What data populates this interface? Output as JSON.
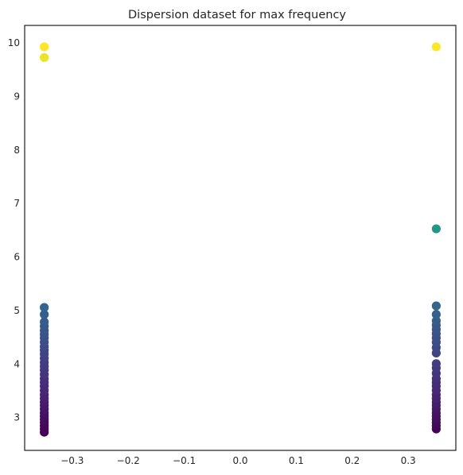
{
  "chart_data": {
    "type": "scatter",
    "title": "Dispersion dataset for max frequency",
    "xlabel": "",
    "ylabel": "",
    "xlim": [
      -0.385,
      0.385
    ],
    "ylim": [
      2.38,
      10.32
    ],
    "xticks": [
      -0.3,
      -0.2,
      -0.1,
      0.0,
      0.1,
      0.2,
      0.3
    ],
    "xtick_labels": [
      "−0.3",
      "−0.2",
      "−0.1",
      "0.0",
      "0.1",
      "0.2",
      "0.3"
    ],
    "yticks": [
      3,
      4,
      5,
      6,
      7,
      8,
      9,
      10
    ],
    "ytick_labels": [
      "3",
      "4",
      "5",
      "6",
      "7",
      "8",
      "9",
      "10"
    ],
    "grid": false,
    "colormap": "viridis",
    "color_range": [
      2.72,
      9.92
    ],
    "points": [
      {
        "x": -0.35,
        "y": 2.72
      },
      {
        "x": -0.35,
        "y": 2.78
      },
      {
        "x": -0.35,
        "y": 2.84
      },
      {
        "x": -0.35,
        "y": 2.9
      },
      {
        "x": -0.35,
        "y": 2.96
      },
      {
        "x": -0.35,
        "y": 3.02
      },
      {
        "x": -0.35,
        "y": 3.08
      },
      {
        "x": -0.35,
        "y": 3.15
      },
      {
        "x": -0.35,
        "y": 3.22
      },
      {
        "x": -0.35,
        "y": 3.28
      },
      {
        "x": -0.35,
        "y": 3.35
      },
      {
        "x": -0.35,
        "y": 3.42
      },
      {
        "x": -0.35,
        "y": 3.5
      },
      {
        "x": -0.35,
        "y": 3.58
      },
      {
        "x": -0.35,
        "y": 3.65
      },
      {
        "x": -0.35,
        "y": 3.72
      },
      {
        "x": -0.35,
        "y": 3.8
      },
      {
        "x": -0.35,
        "y": 3.88
      },
      {
        "x": -0.35,
        "y": 3.95
      },
      {
        "x": -0.35,
        "y": 4.02
      },
      {
        "x": -0.35,
        "y": 4.1
      },
      {
        "x": -0.35,
        "y": 4.18
      },
      {
        "x": -0.35,
        "y": 4.25
      },
      {
        "x": -0.35,
        "y": 4.32
      },
      {
        "x": -0.35,
        "y": 4.4
      },
      {
        "x": -0.35,
        "y": 4.48
      },
      {
        "x": -0.35,
        "y": 4.55
      },
      {
        "x": -0.35,
        "y": 4.62
      },
      {
        "x": -0.35,
        "y": 4.7
      },
      {
        "x": -0.35,
        "y": 4.78
      },
      {
        "x": -0.35,
        "y": 4.92
      },
      {
        "x": -0.35,
        "y": 5.05
      },
      {
        "x": -0.35,
        "y": 9.72
      },
      {
        "x": -0.35,
        "y": 9.92
      },
      {
        "x": 0.35,
        "y": 2.78
      },
      {
        "x": 0.35,
        "y": 2.84
      },
      {
        "x": 0.35,
        "y": 2.9
      },
      {
        "x": 0.35,
        "y": 2.96
      },
      {
        "x": 0.35,
        "y": 3.02
      },
      {
        "x": 0.35,
        "y": 3.08
      },
      {
        "x": 0.35,
        "y": 3.15
      },
      {
        "x": 0.35,
        "y": 3.22
      },
      {
        "x": 0.35,
        "y": 3.28
      },
      {
        "x": 0.35,
        "y": 3.35
      },
      {
        "x": 0.35,
        "y": 3.42
      },
      {
        "x": 0.35,
        "y": 3.5
      },
      {
        "x": 0.35,
        "y": 3.58
      },
      {
        "x": 0.35,
        "y": 3.65
      },
      {
        "x": 0.35,
        "y": 3.72
      },
      {
        "x": 0.35,
        "y": 3.82
      },
      {
        "x": 0.35,
        "y": 3.92
      },
      {
        "x": 0.35,
        "y": 4.0
      },
      {
        "x": 0.35,
        "y": 4.2
      },
      {
        "x": 0.35,
        "y": 4.3
      },
      {
        "x": 0.35,
        "y": 4.4
      },
      {
        "x": 0.35,
        "y": 4.48
      },
      {
        "x": 0.35,
        "y": 4.56
      },
      {
        "x": 0.35,
        "y": 4.64
      },
      {
        "x": 0.35,
        "y": 4.72
      },
      {
        "x": 0.35,
        "y": 4.8
      },
      {
        "x": 0.35,
        "y": 4.92
      },
      {
        "x": 0.35,
        "y": 5.08
      },
      {
        "x": 0.35,
        "y": 6.52
      },
      {
        "x": 0.35,
        "y": 9.92
      }
    ]
  }
}
